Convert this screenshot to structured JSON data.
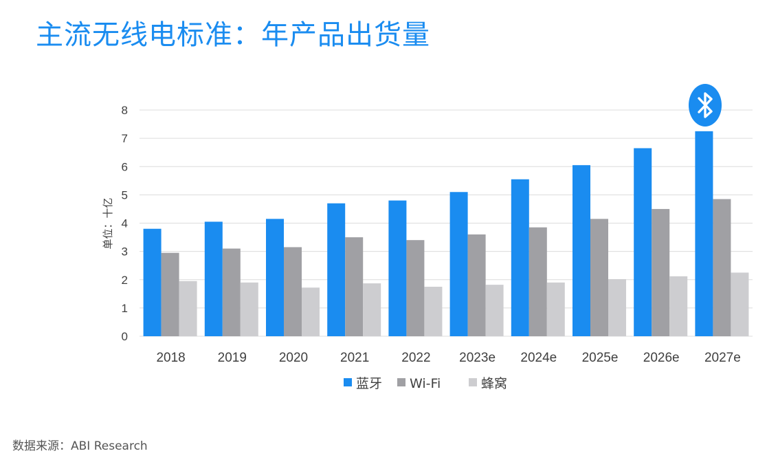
{
  "page": {
    "title": "主流无线电标准：年产品出货量",
    "source": "数据来源：ABI Research"
  },
  "colors": {
    "title": "#1a8cf0",
    "bluetooth": "#1a8cf0",
    "wifi": "#a0a0a4",
    "cellular": "#cdcdd0",
    "grid": "#dcdcdc",
    "bluetooth_logo_bg": "#1a8cf0"
  },
  "icons": {
    "logo": "bluetooth-logo-icon"
  },
  "chart_data": {
    "type": "bar",
    "title": "主流无线电标准：年产品出货量",
    "xlabel": "",
    "ylabel": "单位：十亿",
    "ylim": [
      0,
      8
    ],
    "yticks": [
      "0",
      "1",
      "2",
      "3",
      "4",
      "5",
      "6",
      "7",
      "8"
    ],
    "grid": true,
    "legend_position": "bottom",
    "categories": [
      "2018",
      "2019",
      "2020",
      "2021",
      "2022",
      "2023e",
      "2024e",
      "2025e",
      "2026e",
      "2027e"
    ],
    "series": [
      {
        "name": "蓝牙",
        "values": [
          3.8,
          4.05,
          4.15,
          4.7,
          4.8,
          5.1,
          5.55,
          6.05,
          6.65,
          7.25
        ]
      },
      {
        "name": "Wi-Fi",
        "values": [
          2.95,
          3.1,
          3.15,
          3.5,
          3.4,
          3.6,
          3.85,
          4.15,
          4.5,
          4.85
        ]
      },
      {
        "name": "蜂窝",
        "values": [
          1.95,
          1.9,
          1.72,
          1.87,
          1.75,
          1.82,
          1.9,
          2.02,
          2.12,
          2.25
        ]
      }
    ]
  }
}
